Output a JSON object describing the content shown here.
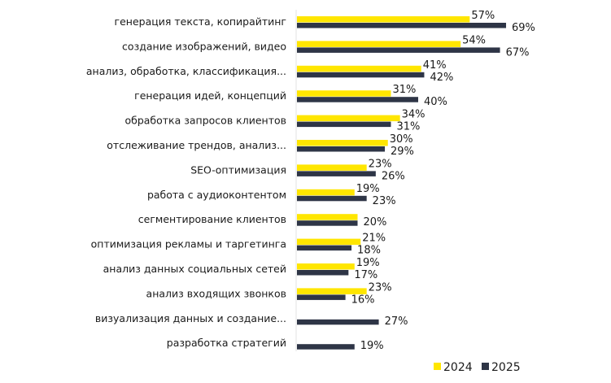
{
  "chart_data": {
    "type": "bar",
    "orientation": "horizontal",
    "title": "",
    "xlabel": "",
    "ylabel": "",
    "xlim": [
      0,
      70
    ],
    "grid": false,
    "legend_position": "bottom-right",
    "categories": [
      "генерация текста, копирайтинг",
      "создание изображений, видео",
      "анализ, обработка, классификация...",
      "генерация идей, концепций",
      "обработка запросов клиентов",
      "отслеживание трендов, анализ...",
      "SEO-оптимизация",
      "работа с аудиоконтентом",
      "сегментирование клиентов",
      "оптимизация  рекламы и таргетинга",
      "анализ данных социальных сетей",
      "анализ входящих звонков",
      "визуализация данных и создание...",
      "разработка стратегий"
    ],
    "series": [
      {
        "name": "2024",
        "color": "#FFE600",
        "values": [
          57,
          54,
          41,
          31,
          34,
          30,
          23,
          19,
          20,
          21,
          19,
          23,
          null,
          null
        ],
        "labels": [
          "57%",
          "54%",
          "41%",
          "31%",
          "34%",
          "30%",
          "23%",
          "19%",
          "",
          "21%",
          "19%",
          "23%",
          "",
          ""
        ]
      },
      {
        "name": "2025",
        "color": "#2E3546",
        "values": [
          69,
          67,
          42,
          40,
          31,
          29,
          26,
          23,
          20,
          18,
          17,
          16,
          27,
          19
        ],
        "labels": [
          "69%",
          "67%",
          "42%",
          "40%",
          "31%",
          "29%",
          "26%",
          "23%",
          "20%",
          "18%",
          "17%",
          "16%",
          "27%",
          "19%"
        ]
      }
    ]
  }
}
